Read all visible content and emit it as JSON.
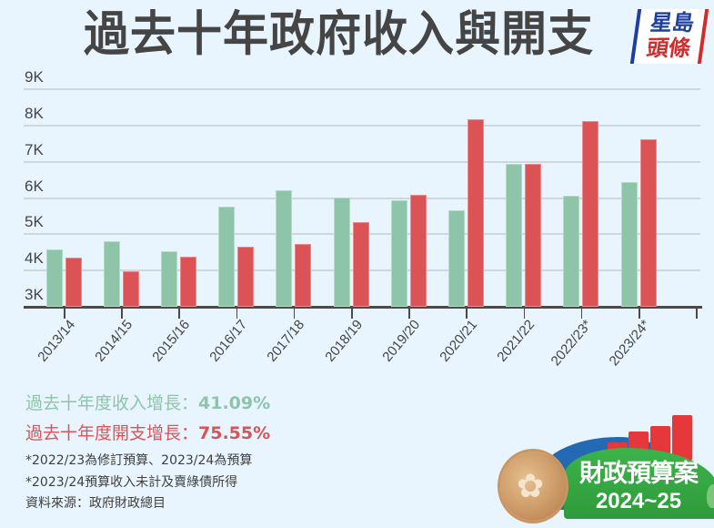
{
  "header": {
    "title": "過去十年政府收入與開支",
    "logo": {
      "line1": "星島",
      "line2": "頭條"
    }
  },
  "colors": {
    "revenue": "#8ec4a8",
    "expenditure": "#dc5356",
    "background": "#e9f5fe"
  },
  "chart_data": {
    "type": "bar",
    "title": "過去十年政府收入與開支",
    "xlabel": "",
    "ylabel": "",
    "categories": [
      "2013/14",
      "2014/15",
      "2015/16",
      "2016/17",
      "2017/18",
      "2018/19",
      "2019/20",
      "2020/21",
      "2021/22",
      "2022/23*",
      "2023/24*"
    ],
    "series": [
      {
        "name": "收入",
        "color": "#8ec4a8",
        "values": [
          4580,
          4810,
          4530,
          5760,
          6220,
          6020,
          5940,
          5660,
          6950,
          6060,
          6440
        ]
      },
      {
        "name": "開支",
        "color": "#dc5356",
        "values": [
          4360,
          3980,
          4380,
          4650,
          4740,
          5340,
          6100,
          8180,
          6950,
          8120,
          7630
        ]
      }
    ],
    "ylim": [
      3000,
      9000
    ],
    "yticks": [
      "3K",
      "4K",
      "5K",
      "6K",
      "7K",
      "8K",
      "9K"
    ],
    "grid": true,
    "legend": "none"
  },
  "stats": {
    "revenue_label": "過去十年度收入增長：",
    "revenue_value": "41.09%",
    "expenditure_label": "過去十年度開支增長：",
    "expenditure_value": "75.55%"
  },
  "notes": [
    "*2022/23為修訂預算、2023/24為預算",
    "*2023/24預算收入未計及賣綠債所得",
    "資料來源：政府財政總目"
  ],
  "badge": {
    "line1": "財政預算案",
    "line2": "2024~25"
  }
}
